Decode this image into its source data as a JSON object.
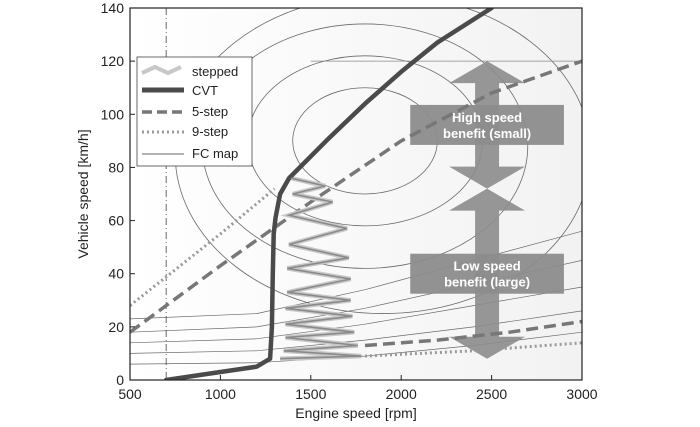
{
  "chart_data": {
    "type": "line",
    "title": "",
    "xlabel": "Engine speed [rpm]",
    "ylabel": "Vehicle speed [km/h]",
    "xlim": [
      500,
      3000
    ],
    "ylim": [
      0,
      140
    ],
    "xticks": [
      500,
      1000,
      1500,
      2000,
      2500,
      3000
    ],
    "yticks": [
      0,
      20,
      40,
      60,
      80,
      100,
      120,
      140
    ],
    "grid": false,
    "legend_position": "top-left",
    "colors": {
      "stepped": "#c8c8c8",
      "cvt": "#4a4a4a",
      "five_step": "#777777",
      "nine_step": "#999999",
      "fc_map": "#6a6a6a",
      "arrow": "#8c8c8c"
    },
    "series": [
      {
        "name": "stepped",
        "style": "thick-light",
        "points": [
          [
            1330,
            8
          ],
          [
            1780,
            9
          ],
          [
            1350,
            11
          ],
          [
            1760,
            13
          ],
          [
            1360,
            16
          ],
          [
            1740,
            18
          ],
          [
            1360,
            21
          ],
          [
            1730,
            24
          ],
          [
            1360,
            27
          ],
          [
            1720,
            30
          ],
          [
            1370,
            33
          ],
          [
            1720,
            38
          ],
          [
            1370,
            42
          ],
          [
            1710,
            46
          ],
          [
            1380,
            51
          ],
          [
            1700,
            57
          ],
          [
            1380,
            62
          ],
          [
            1620,
            67
          ],
          [
            1400,
            70
          ],
          [
            1580,
            73
          ],
          [
            1390,
            76
          ]
        ]
      },
      {
        "name": "CVT",
        "style": "thick-dark",
        "points": [
          [
            700,
            0
          ],
          [
            1000,
            3
          ],
          [
            1200,
            5
          ],
          [
            1275,
            8
          ],
          [
            1285,
            20
          ],
          [
            1290,
            40
          ],
          [
            1295,
            55
          ],
          [
            1305,
            61
          ],
          [
            1330,
            70
          ],
          [
            1380,
            76
          ],
          [
            1600,
            91
          ],
          [
            1800,
            104
          ],
          [
            2000,
            116
          ],
          [
            2200,
            127
          ],
          [
            2500,
            140
          ]
        ]
      },
      {
        "name": "5-step",
        "style": "dashed",
        "points": [
          [
            500,
            18
          ],
          [
            1000,
            43
          ],
          [
            1500,
            67
          ],
          [
            2000,
            90
          ],
          [
            2500,
            108
          ],
          [
            3000,
            120
          ]
        ]
      },
      {
        "name": "9-step",
        "style": "dotted",
        "points": [
          [
            500,
            28
          ],
          [
            1000,
            55
          ],
          [
            1300,
            72
          ]
        ]
      },
      {
        "name": "FC map",
        "style": "thin",
        "contours": [
          {
            "cx": 1800,
            "cy": 90,
            "rx": 400,
            "ry": 20
          },
          {
            "cx": 1800,
            "cy": 90,
            "rx": 650,
            "ry": 32
          },
          {
            "cx": 1800,
            "cy": 88,
            "rx": 900,
            "ry": 46
          },
          {
            "cx": 1900,
            "cy": 85,
            "rx": 1150,
            "ry": 60
          }
        ]
      }
    ],
    "lower_lines": {
      "five_step": [
        [
          1800,
          13
        ],
        [
          2200,
          15
        ],
        [
          2600,
          18
        ],
        [
          3000,
          22
        ]
      ],
      "nine_step": [
        [
          1800,
          9
        ],
        [
          2400,
          11
        ],
        [
          3000,
          14
        ]
      ]
    },
    "reference_line_x": 700,
    "reference_line_y": 120,
    "annotations": {
      "high_speed": {
        "line1": "High speed",
        "line2": "benefit (small)",
        "x_range": [
          2050,
          2900
        ],
        "y_top": 120,
        "y_bottom": 72
      },
      "low_speed": {
        "line1": "Low speed",
        "line2": "benefit (large)",
        "x_range": [
          2050,
          2900
        ],
        "y_top": 72,
        "y_bottom": 8
      }
    }
  }
}
